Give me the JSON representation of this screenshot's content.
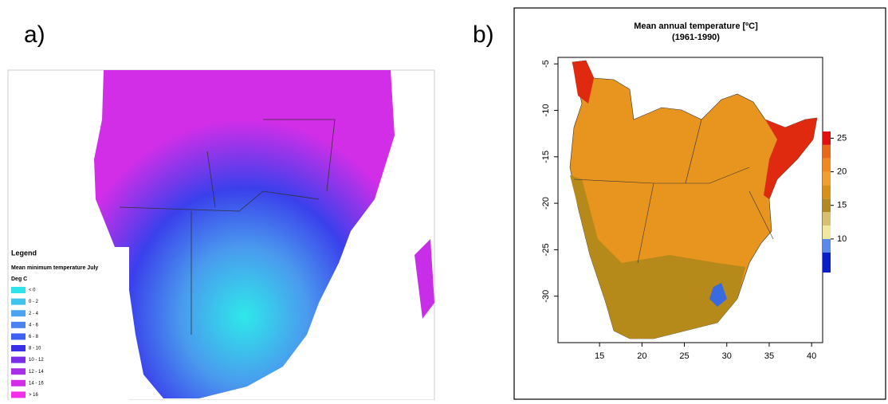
{
  "panel_a": {
    "label": "a)",
    "legend": {
      "title": "Legend",
      "subtitle": "Mean minimum temperature July",
      "unit": "Deg C",
      "items": [
        {
          "label": "< 0",
          "color": "#2ee3ea"
        },
        {
          "label": "0 - 2",
          "color": "#3fc3ee"
        },
        {
          "label": "2 - 4",
          "color": "#4aa4ef"
        },
        {
          "label": "4 - 6",
          "color": "#4a82ee"
        },
        {
          "label": "6 - 8",
          "color": "#3c60f0"
        },
        {
          "label": "8 - 10",
          "color": "#3a30e8"
        },
        {
          "label": "10 - 12",
          "color": "#7a2ee8"
        },
        {
          "label": "12 - 14",
          "color": "#a92ee8"
        },
        {
          "label": "14 - 16",
          "color": "#d22ee8"
        },
        {
          "label": "> 16",
          "color": "#f22ee8"
        }
      ]
    }
  },
  "panel_b": {
    "label": "b)",
    "title": "Mean annual temperature [ºC]",
    "subtitle": "(1961-1990)",
    "xlim": [
      10.1,
      41.3
    ],
    "ylim": [
      -35,
      -4.3
    ],
    "xticks": [
      15,
      20,
      25,
      30,
      35,
      40
    ],
    "yticks": [
      -5,
      -10,
      -15,
      -20,
      -25,
      -30
    ],
    "colorbar": {
      "lim": [
        5,
        26
      ],
      "ticks": [
        10,
        15,
        20,
        25
      ],
      "bins": [
        5,
        8,
        10,
        12,
        14,
        16,
        18,
        20,
        22,
        24,
        26
      ],
      "colors": [
        "#0a1ec8",
        "#5a8ae8",
        "#f0e8a0",
        "#d8c070",
        "#b08a20",
        "#d8901a",
        "#f0a030",
        "#f08a20",
        "#e86a18",
        "#e01010"
      ]
    }
  }
}
